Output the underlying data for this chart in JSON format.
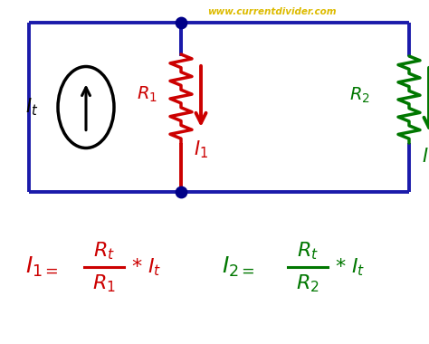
{
  "bg_color": "#ffffff",
  "circuit_color": "#1a1aaa",
  "red_color": "#cc0000",
  "green_color": "#007700",
  "yellow_color": "#ddbb00",
  "dot_color": "#000088",
  "black_color": "#000000",
  "title_text": "www.currentdivider.com",
  "fig_width": 4.74,
  "fig_height": 3.8,
  "dpi": 100
}
